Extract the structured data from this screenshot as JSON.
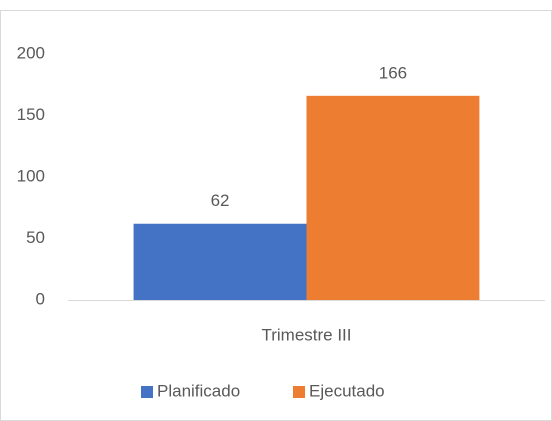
{
  "chart_data": {
    "type": "bar",
    "categories": [
      "Trimestre III"
    ],
    "series": [
      {
        "name": "Planificado",
        "color": "#4472c4",
        "values": [
          62
        ]
      },
      {
        "name": "Ejecutado",
        "color": "#ed7d31",
        "values": [
          166
        ]
      }
    ],
    "ylim": [
      0,
      200
    ],
    "yticks": [
      0,
      50,
      100,
      150,
      200
    ],
    "grid": false,
    "data_labels": true,
    "legend": "bottom"
  }
}
